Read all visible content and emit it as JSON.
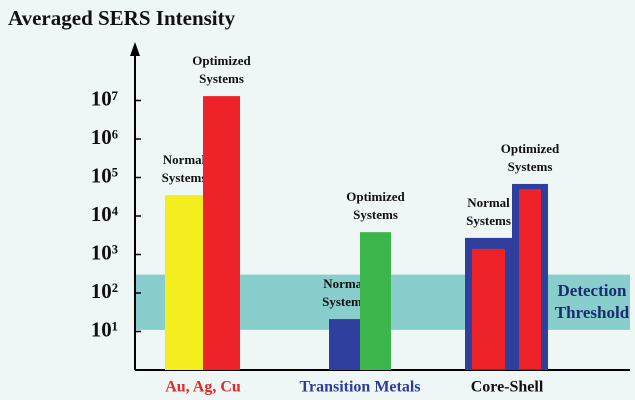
{
  "chart_data": {
    "type": "bar",
    "log_scale": true,
    "title": "Averaged SERS Intensity",
    "ylim": [
      1,
      100000000
    ],
    "yticks": [
      {
        "value": 10,
        "label": "10¹"
      },
      {
        "value": 100,
        "label": "10²"
      },
      {
        "value": 1000,
        "label": "10³"
      },
      {
        "value": 10000,
        "label": "10⁴"
      },
      {
        "value": 100000,
        "label": "10⁵"
      },
      {
        "value": 1000000,
        "label": "10⁶"
      },
      {
        "value": 10000000,
        "label": "10⁷"
      }
    ],
    "threshold": {
      "lines": [
        "Detection",
        "Threshold"
      ],
      "range": [
        11,
        300
      ],
      "color": "#5cbcbc"
    },
    "groups": [
      {
        "name": "Au, Ag, Cu",
        "name_color": "#e8262a",
        "bars": [
          {
            "lines": [
              "Normal",
              "Systems"
            ],
            "color": "#f5ee1e",
            "value": 35000
          },
          {
            "lines": [
              "Optimized",
              "Systems"
            ],
            "color": "#ee2229",
            "value": 13000000
          }
        ]
      },
      {
        "name": "Transition Metals",
        "name_color": "#2e3a9c",
        "bars": [
          {
            "lines": [
              "Normal",
              "Systems"
            ],
            "color": "#2e3f9e",
            "value": 21
          },
          {
            "lines": [
              "Optimized",
              "Systems"
            ],
            "color": "#3cb54a",
            "value": 3800
          }
        ]
      },
      {
        "name": "Core-Shell",
        "name_color": "#111111",
        "bars": [
          {
            "lines": [
              "Normal",
              "Systems"
            ],
            "color": "#2e3f9e",
            "value": 2700,
            "core_color": "#ee2229",
            "core_value": 1400
          },
          {
            "lines": [
              "Optimized",
              "Systems"
            ],
            "color": "#2e3f9e",
            "value": 68000,
            "core_color": "#ee2229",
            "core_value": 50000
          }
        ]
      }
    ]
  }
}
